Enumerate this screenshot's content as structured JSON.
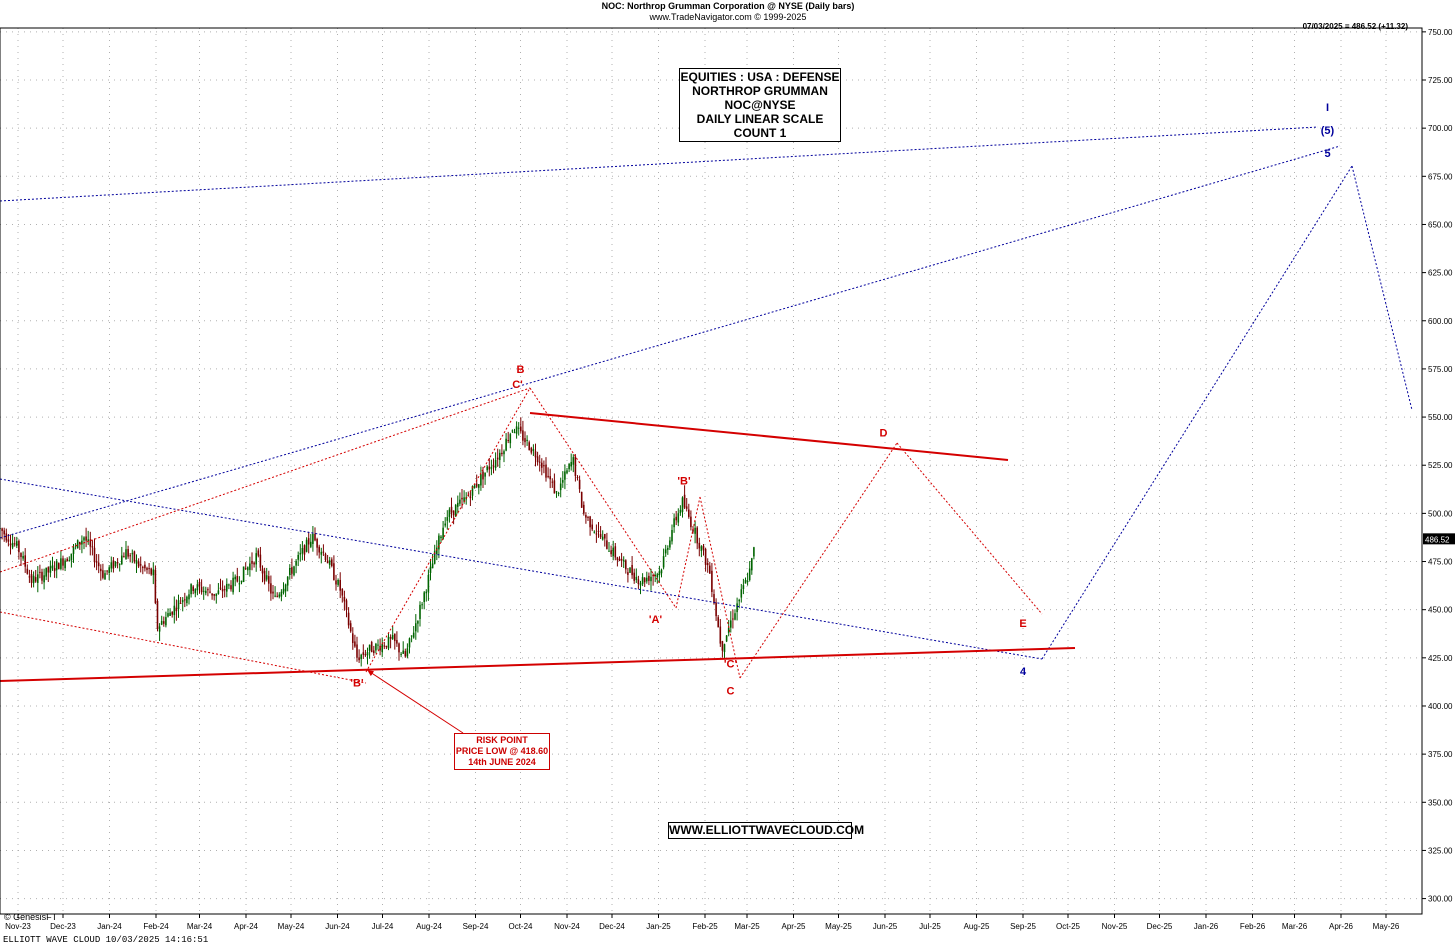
{
  "header": {
    "line1": "NOC:  Northrop Grumman Corporation @ NYSE  (Daily bars)",
    "line2": "www.TradeNavigator.com © 1999-2025"
  },
  "last_quote": "07/03/2025 = 486.52 (+11.32)",
  "last_price_tag": "486.52",
  "title_box": [
    "EQUITIES : USA : DEFENSE",
    "NORTHROP GRUMMAN",
    "NOC@NYSE",
    "DAILY LINEAR SCALE",
    "COUNT 1"
  ],
  "risk_box": [
    "RISK POINT",
    "PRICE LOW @ 418.60",
    "14th JUNE 2024"
  ],
  "website": "WWW.ELLIOTTWAVECLOUD.COM",
  "footer": {
    "genesis": "© GenesisFT",
    "status": "ELLIOTT WAVE CLOUD   10/03/2025 14:16:51"
  },
  "colors": {
    "red": "#d40000",
    "blue": "#00009c",
    "candle_up": "#006400",
    "candle_down": "#7a0000",
    "grid": "#b0b0b0"
  },
  "chart_data": {
    "type": "candlestick",
    "ylim": [
      292,
      752
    ],
    "y_ticks": [
      300,
      325,
      350,
      375,
      400,
      425,
      450,
      475,
      500,
      525,
      550,
      575,
      600,
      625,
      650,
      675,
      700,
      725,
      750
    ],
    "y_tick_labels": [
      "300.00",
      "325.00",
      "350.00",
      "375.00",
      "400.00",
      "425.00",
      "450.00",
      "475.00",
      "500.00",
      "525.00",
      "550.00",
      "575.00",
      "600.00",
      "625.00",
      "650.00",
      "675.00",
      "700.00",
      "725.00",
      "750.00"
    ],
    "x_ticks": [
      "Nov-23",
      "Dec-23",
      "Jan-24",
      "Feb-24",
      "Mar-24",
      "Apr-24",
      "May-24",
      "Jun-24",
      "Jul-24",
      "Aug-24",
      "Sep-24",
      "Oct-24",
      "Nov-24",
      "Dec-24",
      "Jan-25",
      "Feb-25",
      "Mar-25",
      "Apr-25",
      "May-25",
      "Jun-25",
      "Jul-25",
      "Aug-25",
      "Sep-25",
      "Oct-25",
      "Nov-25",
      "Dec-25",
      "Jan-26",
      "Feb-26",
      "Mar-26",
      "Apr-26",
      "May-26"
    ],
    "price_path": [
      [
        "2023-10-20",
        492
      ],
      [
        "2023-11-01",
        482
      ],
      [
        "2023-11-10",
        465
      ],
      [
        "2023-11-22",
        470
      ],
      [
        "2023-12-05",
        478
      ],
      [
        "2023-12-15",
        488
      ],
      [
        "2023-12-28",
        468
      ],
      [
        "2024-01-12",
        480
      ],
      [
        "2024-01-22",
        472
      ],
      [
        "2024-01-31",
        468
      ],
      [
        "2024-02-01",
        440
      ],
      [
        "2024-02-12",
        450
      ],
      [
        "2024-02-26",
        462
      ],
      [
        "2024-03-12",
        458
      ],
      [
        "2024-03-26",
        465
      ],
      [
        "2024-04-08",
        478
      ],
      [
        "2024-04-20",
        455
      ],
      [
        "2024-05-01",
        470
      ],
      [
        "2024-05-15",
        488
      ],
      [
        "2024-05-24",
        478
      ],
      [
        "2024-06-03",
        460
      ],
      [
        "2024-06-14",
        425
      ],
      [
        "2024-06-24",
        430
      ],
      [
        "2024-07-08",
        434
      ],
      [
        "2024-07-16",
        425
      ],
      [
        "2024-07-24",
        445
      ],
      [
        "2024-08-02",
        470
      ],
      [
        "2024-08-12",
        498
      ],
      [
        "2024-08-26",
        508
      ],
      [
        "2024-09-06",
        520
      ],
      [
        "2024-09-18",
        532
      ],
      [
        "2024-09-26",
        545
      ],
      [
        "2024-10-02",
        540
      ],
      [
        "2024-10-14",
        528
      ],
      [
        "2024-10-25",
        510
      ],
      [
        "2024-11-05",
        528
      ],
      [
        "2024-11-12",
        500
      ],
      [
        "2024-11-26",
        485
      ],
      [
        "2024-12-10",
        472
      ],
      [
        "2024-12-20",
        465
      ],
      [
        "2025-01-02",
        470
      ],
      [
        "2025-01-10",
        492
      ],
      [
        "2025-01-17",
        506
      ],
      [
        "2025-01-28",
        485
      ],
      [
        "2025-02-04",
        470
      ],
      [
        "2025-02-12",
        430
      ],
      [
        "2025-02-20",
        448
      ],
      [
        "2025-03-03",
        470
      ],
      [
        "2025-03-07",
        486.52
      ]
    ],
    "wave_labels": [
      {
        "text": "'B'",
        "date": "2024-06-14",
        "price": 410,
        "color": "red"
      },
      {
        "text": "C'",
        "date": "2024-09-29",
        "price": 565,
        "color": "red"
      },
      {
        "text": "B",
        "date": "2024-10-01",
        "price": 573,
        "color": "red"
      },
      {
        "text": "'A'",
        "date": "2024-12-30",
        "price": 443,
        "color": "red"
      },
      {
        "text": "'B'",
        "date": "2025-01-18",
        "price": 515,
        "color": "red"
      },
      {
        "text": "'C'",
        "date": "2025-02-18",
        "price": 420,
        "color": "red"
      },
      {
        "text": "C",
        "date": "2025-02-18",
        "price": 406,
        "color": "red"
      },
      {
        "text": "D",
        "date": "2025-05-31",
        "price": 540,
        "color": "red"
      },
      {
        "text": "E",
        "date": "2025-09-01",
        "price": 441,
        "color": "red"
      },
      {
        "text": "4",
        "date": "2025-09-01",
        "price": 416,
        "color": "blue"
      },
      {
        "text": "5",
        "date": "2026-03-23",
        "price": 685,
        "color": "blue"
      },
      {
        "text": "(5)",
        "date": "2026-03-23",
        "price": 697,
        "color": "blue"
      },
      {
        "text": "I",
        "date": "2026-03-23",
        "price": 709,
        "color": "blue"
      }
    ]
  }
}
